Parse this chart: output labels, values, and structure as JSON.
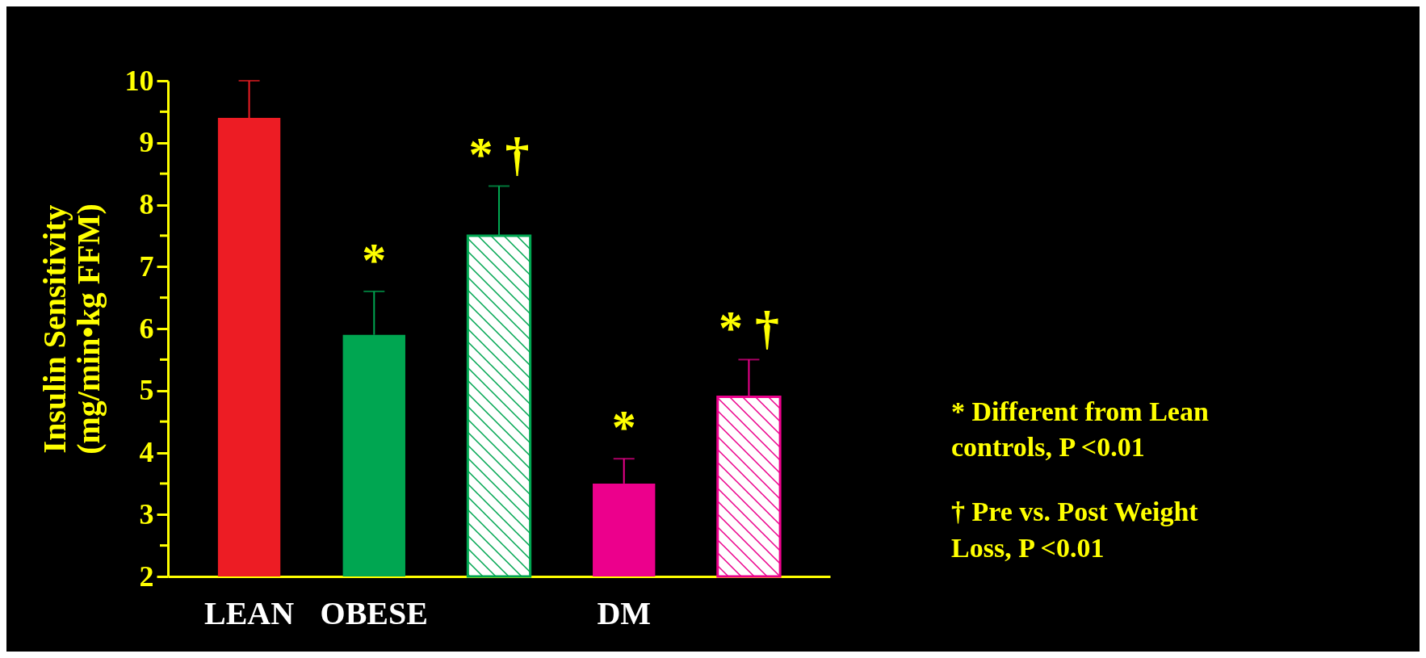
{
  "chart_data": {
    "type": "bar",
    "ylabel": "Insulin Sensitivity\n(mg/min•kg FFM)",
    "categories": [
      "LEAN",
      "OBESE",
      null,
      "DM",
      null
    ],
    "series": [
      {
        "colors": [
          "#ed1c24",
          "#00a651",
          null,
          "#ec008c",
          null
        ],
        "values": [
          9.4,
          5.9,
          null,
          3.5,
          null
        ],
        "errors": [
          [
            9.4,
            10
          ],
          [
            5.9,
            6.6
          ],
          null,
          [
            3.5,
            3.9
          ],
          null
        ]
      },
      {
        "colors": [
          null,
          null,
          "#00a651",
          null,
          "#ec008c"
        ],
        "values": [
          null,
          null,
          7.5,
          null,
          4.9
        ],
        "errors": [
          null,
          null,
          [
            7.5,
            8.3
          ],
          null,
          [
            4.9,
            5.5
          ]
        ]
      }
    ],
    "ylim": [
      2,
      10
    ],
    "yticks": [
      2,
      {
        "value": 2.5,
        "label": null
      },
      3,
      {
        "value": 3.5,
        "label": null
      },
      4,
      {
        "value": 4.5,
        "label": null
      },
      5,
      {
        "value": 5.5,
        "label": null
      },
      6,
      {
        "value": 6.5,
        "label": null
      },
      7,
      {
        "value": 7.5,
        "label": null
      },
      8,
      {
        "value": 8.5,
        "label": null
      },
      9,
      {
        "value": 9.5,
        "label": null
      },
      10
    ],
    "grid": false,
    "annotations": [
      "*",
      "* †",
      "*",
      "* †",
      "* Different from Lean\ncontrols, P <0.01",
      "† Pre vs. Post Weight\nLoss, P <0.01"
    ]
  }
}
